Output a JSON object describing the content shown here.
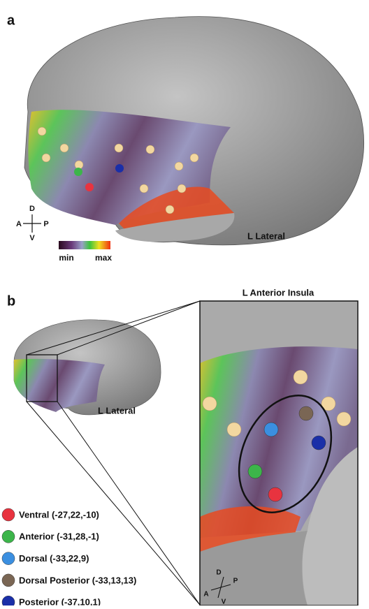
{
  "panel_a": {
    "label": "a",
    "compass": {
      "up": "D",
      "left": "A",
      "right": "P",
      "down": "V"
    },
    "colorbar": {
      "min": "min",
      "max": "max"
    },
    "view": "L Lateral"
  },
  "panel_b": {
    "label": "b",
    "view": "L Lateral",
    "zoom_title": "L Anterior Insula",
    "compass": {
      "up": "D",
      "left": "A",
      "right": "P",
      "down": "V"
    },
    "legend": [
      {
        "name": "Ventral (-27,22,-10)",
        "color": "#e8333f"
      },
      {
        "name": "Anterior (-31,28,-1)",
        "color": "#3cb54a"
      },
      {
        "name": "Dorsal (-33,22,9)",
        "color": "#3b8fe0"
      },
      {
        "name": "Dorsal Posterior (-33,13,13)",
        "color": "#7a6654"
      },
      {
        "name": "Posterior (-37,10,1)",
        "color": "#1a2fa8"
      }
    ]
  }
}
